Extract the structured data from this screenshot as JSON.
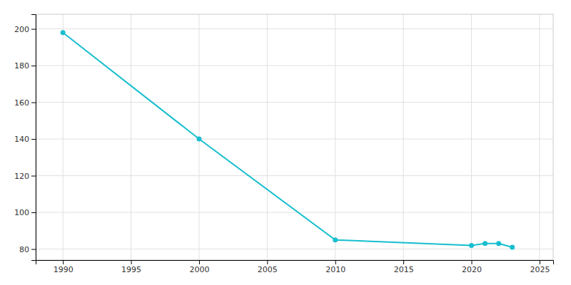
{
  "chart_data": {
    "type": "line",
    "x": [
      1990,
      2000,
      2010,
      2020,
      2021,
      2022,
      2023
    ],
    "values": [
      198,
      140,
      85,
      82,
      83,
      83,
      81
    ],
    "color": "#17becf",
    "marker": "circle",
    "xlim": [
      1988,
      2026
    ],
    "ylim": [
      74,
      208
    ],
    "xticks": [
      1990,
      1995,
      2000,
      2005,
      2010,
      2015,
      2020,
      2025
    ],
    "yticks": [
      80,
      100,
      120,
      140,
      160,
      180,
      200
    ],
    "grid": true
  }
}
